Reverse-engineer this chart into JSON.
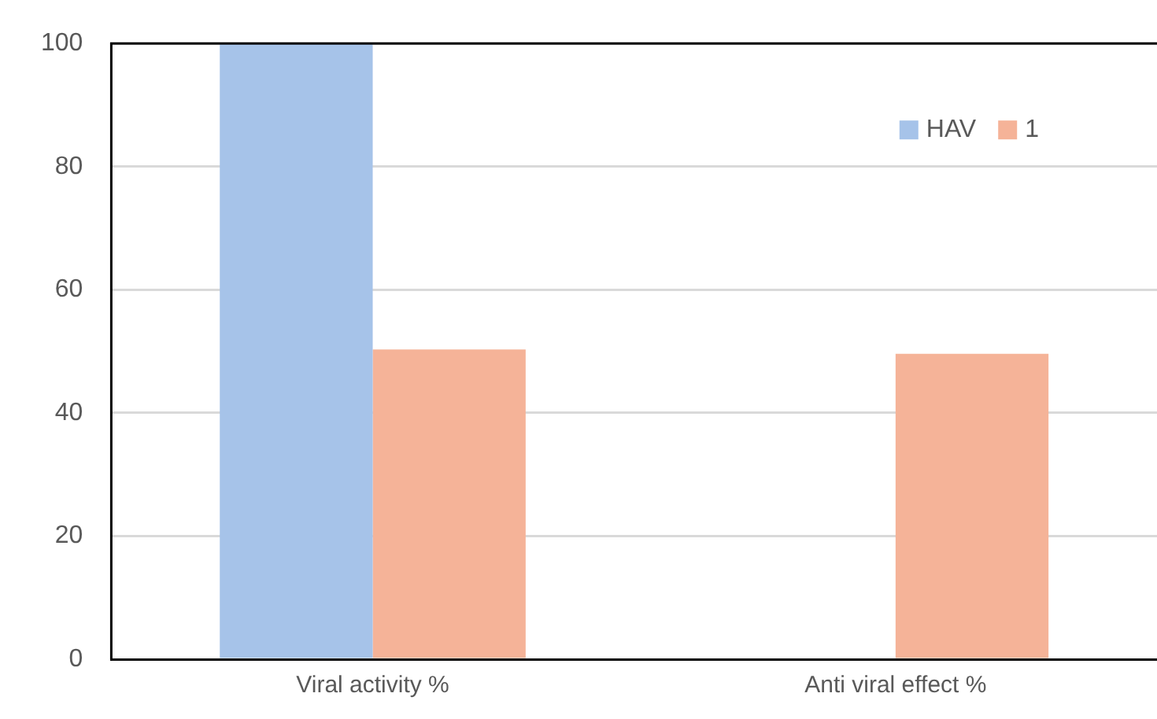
{
  "chart_data": {
    "type": "bar",
    "categories": [
      "Viral activity %",
      "Anti viral effect %"
    ],
    "series": [
      {
        "name": "HAV",
        "color": "#a6c3e9",
        "values": [
          100,
          null
        ]
      },
      {
        "name": "1",
        "color": "#f5b398",
        "values": [
          50.3,
          49.6
        ]
      }
    ],
    "ylim": [
      0,
      100
    ],
    "yticks": [
      0,
      20,
      40,
      60,
      80,
      100
    ],
    "grid": "y",
    "legend": "top right"
  }
}
